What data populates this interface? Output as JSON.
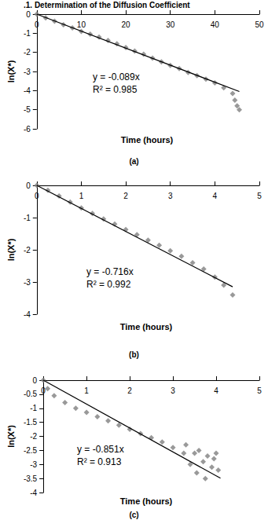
{
  "heading": ".1. Determination of the Diffusion Coefficient",
  "chart_data": [
    {
      "type": "scatter",
      "title": "(a)",
      "x_label": "Time (hours)",
      "y_label": "ln(X*)",
      "annotations": [
        "y = -0.089x",
        "R² = 0.985"
      ],
      "xlim": [
        0,
        50
      ],
      "xticks": [
        0,
        10,
        20,
        30,
        40,
        50
      ],
      "ylim": [
        -6,
        0
      ],
      "yticks": [
        -6,
        -5,
        -4,
        -3,
        -2,
        -1,
        0
      ],
      "grid": false,
      "series": [
        {
          "type": "scatter",
          "color": "#808080",
          "marker": "diamond",
          "x": [
            0,
            2,
            4,
            6,
            8,
            10,
            12,
            14,
            16,
            18,
            20,
            22,
            24,
            26,
            28,
            30,
            32,
            34,
            36,
            38,
            40,
            42,
            44,
            44.5,
            45,
            45.5
          ],
          "values": [
            0,
            -0.2,
            -0.37,
            -0.55,
            -0.72,
            -0.9,
            -1.05,
            -1.2,
            -1.38,
            -1.55,
            -1.75,
            -1.93,
            -2.1,
            -2.3,
            -2.5,
            -2.68,
            -2.85,
            -3.05,
            -3.22,
            -3.4,
            -3.6,
            -3.85,
            -4.15,
            -4.5,
            -4.8,
            -5.0
          ]
        },
        {
          "type": "line",
          "color": "#000000",
          "x": [
            0,
            45.5
          ],
          "values": [
            0,
            -4.05
          ]
        }
      ]
    },
    {
      "type": "scatter",
      "title": "(b)",
      "x_label": "Time (hours)",
      "y_label": "ln(X*)",
      "annotations": [
        "y = -0.716x",
        "R² = 0.992"
      ],
      "xlim": [
        0,
        5
      ],
      "xticks": [
        0,
        1,
        2,
        3,
        4,
        5
      ],
      "ylim": [
        -4,
        0
      ],
      "yticks": [
        -4,
        -3,
        -2,
        -1,
        0
      ],
      "grid": false,
      "series": [
        {
          "type": "scatter",
          "color": "#808080",
          "marker": "diamond",
          "x": [
            0,
            0.25,
            0.5,
            0.75,
            1,
            1.25,
            1.5,
            1.75,
            2,
            2.25,
            2.5,
            2.75,
            3,
            3.25,
            3.5,
            3.75,
            4,
            4.2,
            4.4
          ],
          "values": [
            0,
            -0.15,
            -0.33,
            -0.52,
            -0.7,
            -0.87,
            -1.04,
            -1.2,
            -1.37,
            -1.53,
            -1.7,
            -1.86,
            -2.03,
            -2.2,
            -2.4,
            -2.6,
            -2.85,
            -3.1,
            -3.4
          ]
        },
        {
          "type": "line",
          "color": "#000000",
          "x": [
            0,
            4.4
          ],
          "values": [
            0,
            -3.15
          ]
        }
      ]
    },
    {
      "type": "scatter",
      "title": "(c)",
      "x_label": "Time (hours)",
      "y_label": "ln(X*)",
      "annotations": [
        "y = -0.851x",
        "R² = 0.913"
      ],
      "xlim": [
        0,
        5
      ],
      "xticks": [
        0,
        1,
        2,
        3,
        4,
        5
      ],
      "ylim": [
        -4,
        0
      ],
      "yticks": [
        -4,
        -3.5,
        -3,
        -2.5,
        -2,
        -1.5,
        -1,
        -0.5,
        0
      ],
      "grid": false,
      "series": [
        {
          "type": "scatter",
          "color": "#808080",
          "marker": "diamond",
          "x": [
            0,
            0.1,
            0.25,
            0.5,
            0.75,
            1,
            1.25,
            1.5,
            1.75,
            2,
            2.25,
            2.5,
            2.75,
            3,
            3.25,
            3.3,
            3.4,
            3.5,
            3.55,
            3.6,
            3.7,
            3.75,
            3.8,
            3.9,
            3.95,
            4.0,
            4.05
          ],
          "values": [
            0,
            -0.3,
            -0.55,
            -0.8,
            -1.0,
            -1.15,
            -1.3,
            -1.45,
            -1.6,
            -1.75,
            -1.9,
            -2.05,
            -2.2,
            -2.4,
            -2.6,
            -2.3,
            -3.0,
            -2.6,
            -3.3,
            -2.5,
            -2.9,
            -3.5,
            -2.7,
            -3.1,
            -2.8,
            -2.6,
            -3.2
          ]
        },
        {
          "type": "line",
          "color": "#000000",
          "x": [
            0,
            4.1
          ],
          "values": [
            0,
            -3.49
          ]
        }
      ]
    }
  ]
}
